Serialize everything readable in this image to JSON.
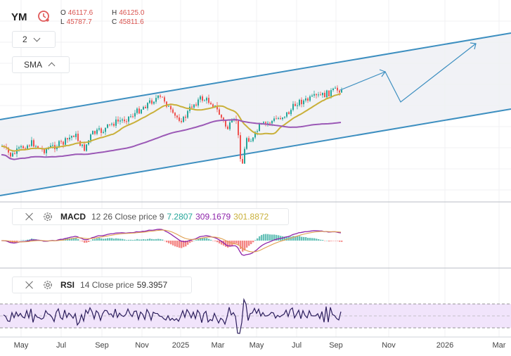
{
  "symbol": "YM",
  "ohlc": {
    "o_label": "O",
    "o_value": "46117.6",
    "h_label": "H",
    "h_value": "46125.0",
    "l_label": "L",
    "l_value": "45787.7",
    "c_label": "C",
    "c_value": "45811.6"
  },
  "interval": {
    "value": "2"
  },
  "overlay": {
    "label": "SMA"
  },
  "macd": {
    "name": "MACD",
    "params": "12 26 Close price 9",
    "values": [
      "7.2807",
      "309.1679",
      "301.8872"
    ],
    "colors": [
      "#26a69a",
      "#8e24aa",
      "#c9b03a"
    ]
  },
  "rsi": {
    "name": "RSI",
    "params": "14 Close price",
    "value": "59.3957"
  },
  "x_axis": {
    "labels": [
      "May",
      "Jul",
      "Sep",
      "Nov",
      "2025",
      "Mar",
      "May",
      "Jul",
      "Sep",
      "Nov",
      "2026",
      "Mar"
    ]
  },
  "colors": {
    "up": "#26a69a",
    "down": "#ef5350",
    "channel": "#3d8fc0",
    "sma_fast": "#c9b03a",
    "sma_slow": "#9b59b6",
    "macd_line": "#8e24aa",
    "signal_line": "#e0a050",
    "rsi_line": "#2b1d5c",
    "rsi_band": "#f1e4fb"
  }
}
